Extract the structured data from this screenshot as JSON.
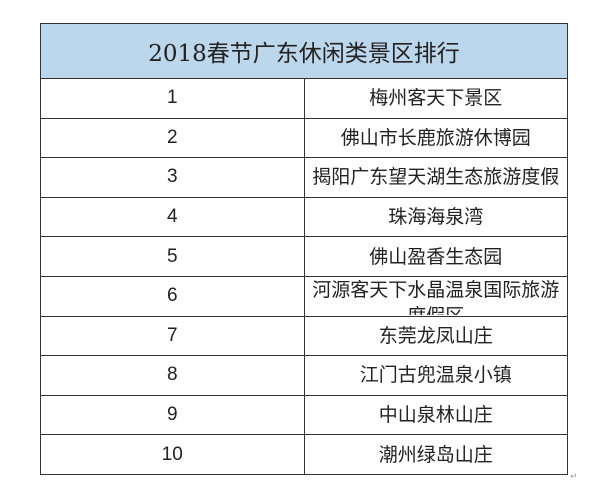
{
  "table": {
    "title": "2018春节广东休闲类景区排行",
    "rows": [
      {
        "rank": "1",
        "name": "梅州客天下景区"
      },
      {
        "rank": "2",
        "name": "佛山市长鹿旅游休博园"
      },
      {
        "rank": "3",
        "name": "揭阳广东望天湖生态旅游度假区"
      },
      {
        "rank": "4",
        "name": "珠海海泉湾"
      },
      {
        "rank": "5",
        "name": "佛山盈香生态园"
      },
      {
        "rank": "6",
        "name": "河源客天下水晶温泉国际旅游度假区"
      },
      {
        "rank": "7",
        "name": "东莞龙凤山庄"
      },
      {
        "rank": "8",
        "name": "江门古兜温泉小镇"
      },
      {
        "rank": "9",
        "name": "中山泉林山庄"
      },
      {
        "rank": "10",
        "name": "潮州绿岛山庄"
      }
    ]
  },
  "paragraph_mark": "↵"
}
